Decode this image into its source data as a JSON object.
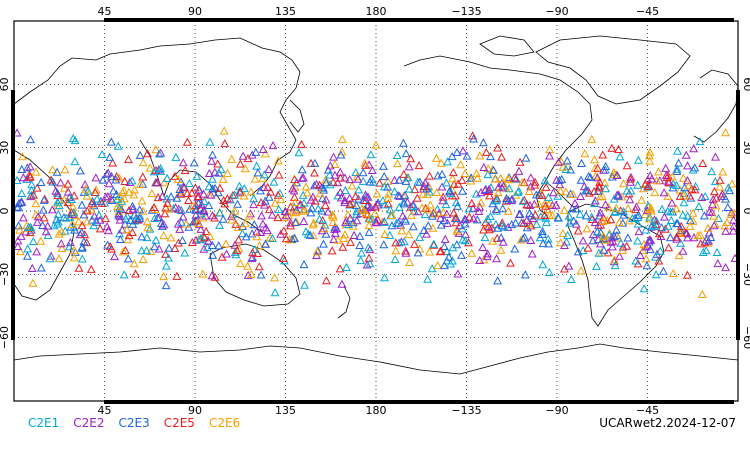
{
  "map": {
    "top_lon_labels": [
      "45",
      "90",
      "135",
      "180",
      "−135",
      "−90",
      "−45"
    ],
    "bottom_lon_labels": [
      "45",
      "90",
      "135",
      "180",
      "−135",
      "−90",
      "−45"
    ],
    "lat_labels": [
      "60",
      "30",
      "0",
      "−30",
      "−60"
    ],
    "marker_shape": "triangle",
    "lat_range": [
      -90,
      90
    ],
    "lon_range": [
      0,
      360
    ]
  },
  "legend": [
    {
      "label": "C2E1",
      "color": "#00a8d8"
    },
    {
      "label": "C2E2",
      "color": "#a020c8"
    },
    {
      "label": "C2E3",
      "color": "#1e64e0"
    },
    {
      "label": "C2E5",
      "color": "#e81e1e"
    },
    {
      "label": "C2E6",
      "color": "#f5a000"
    }
  ],
  "product_label": "UCARwet2.2024-12-07"
}
